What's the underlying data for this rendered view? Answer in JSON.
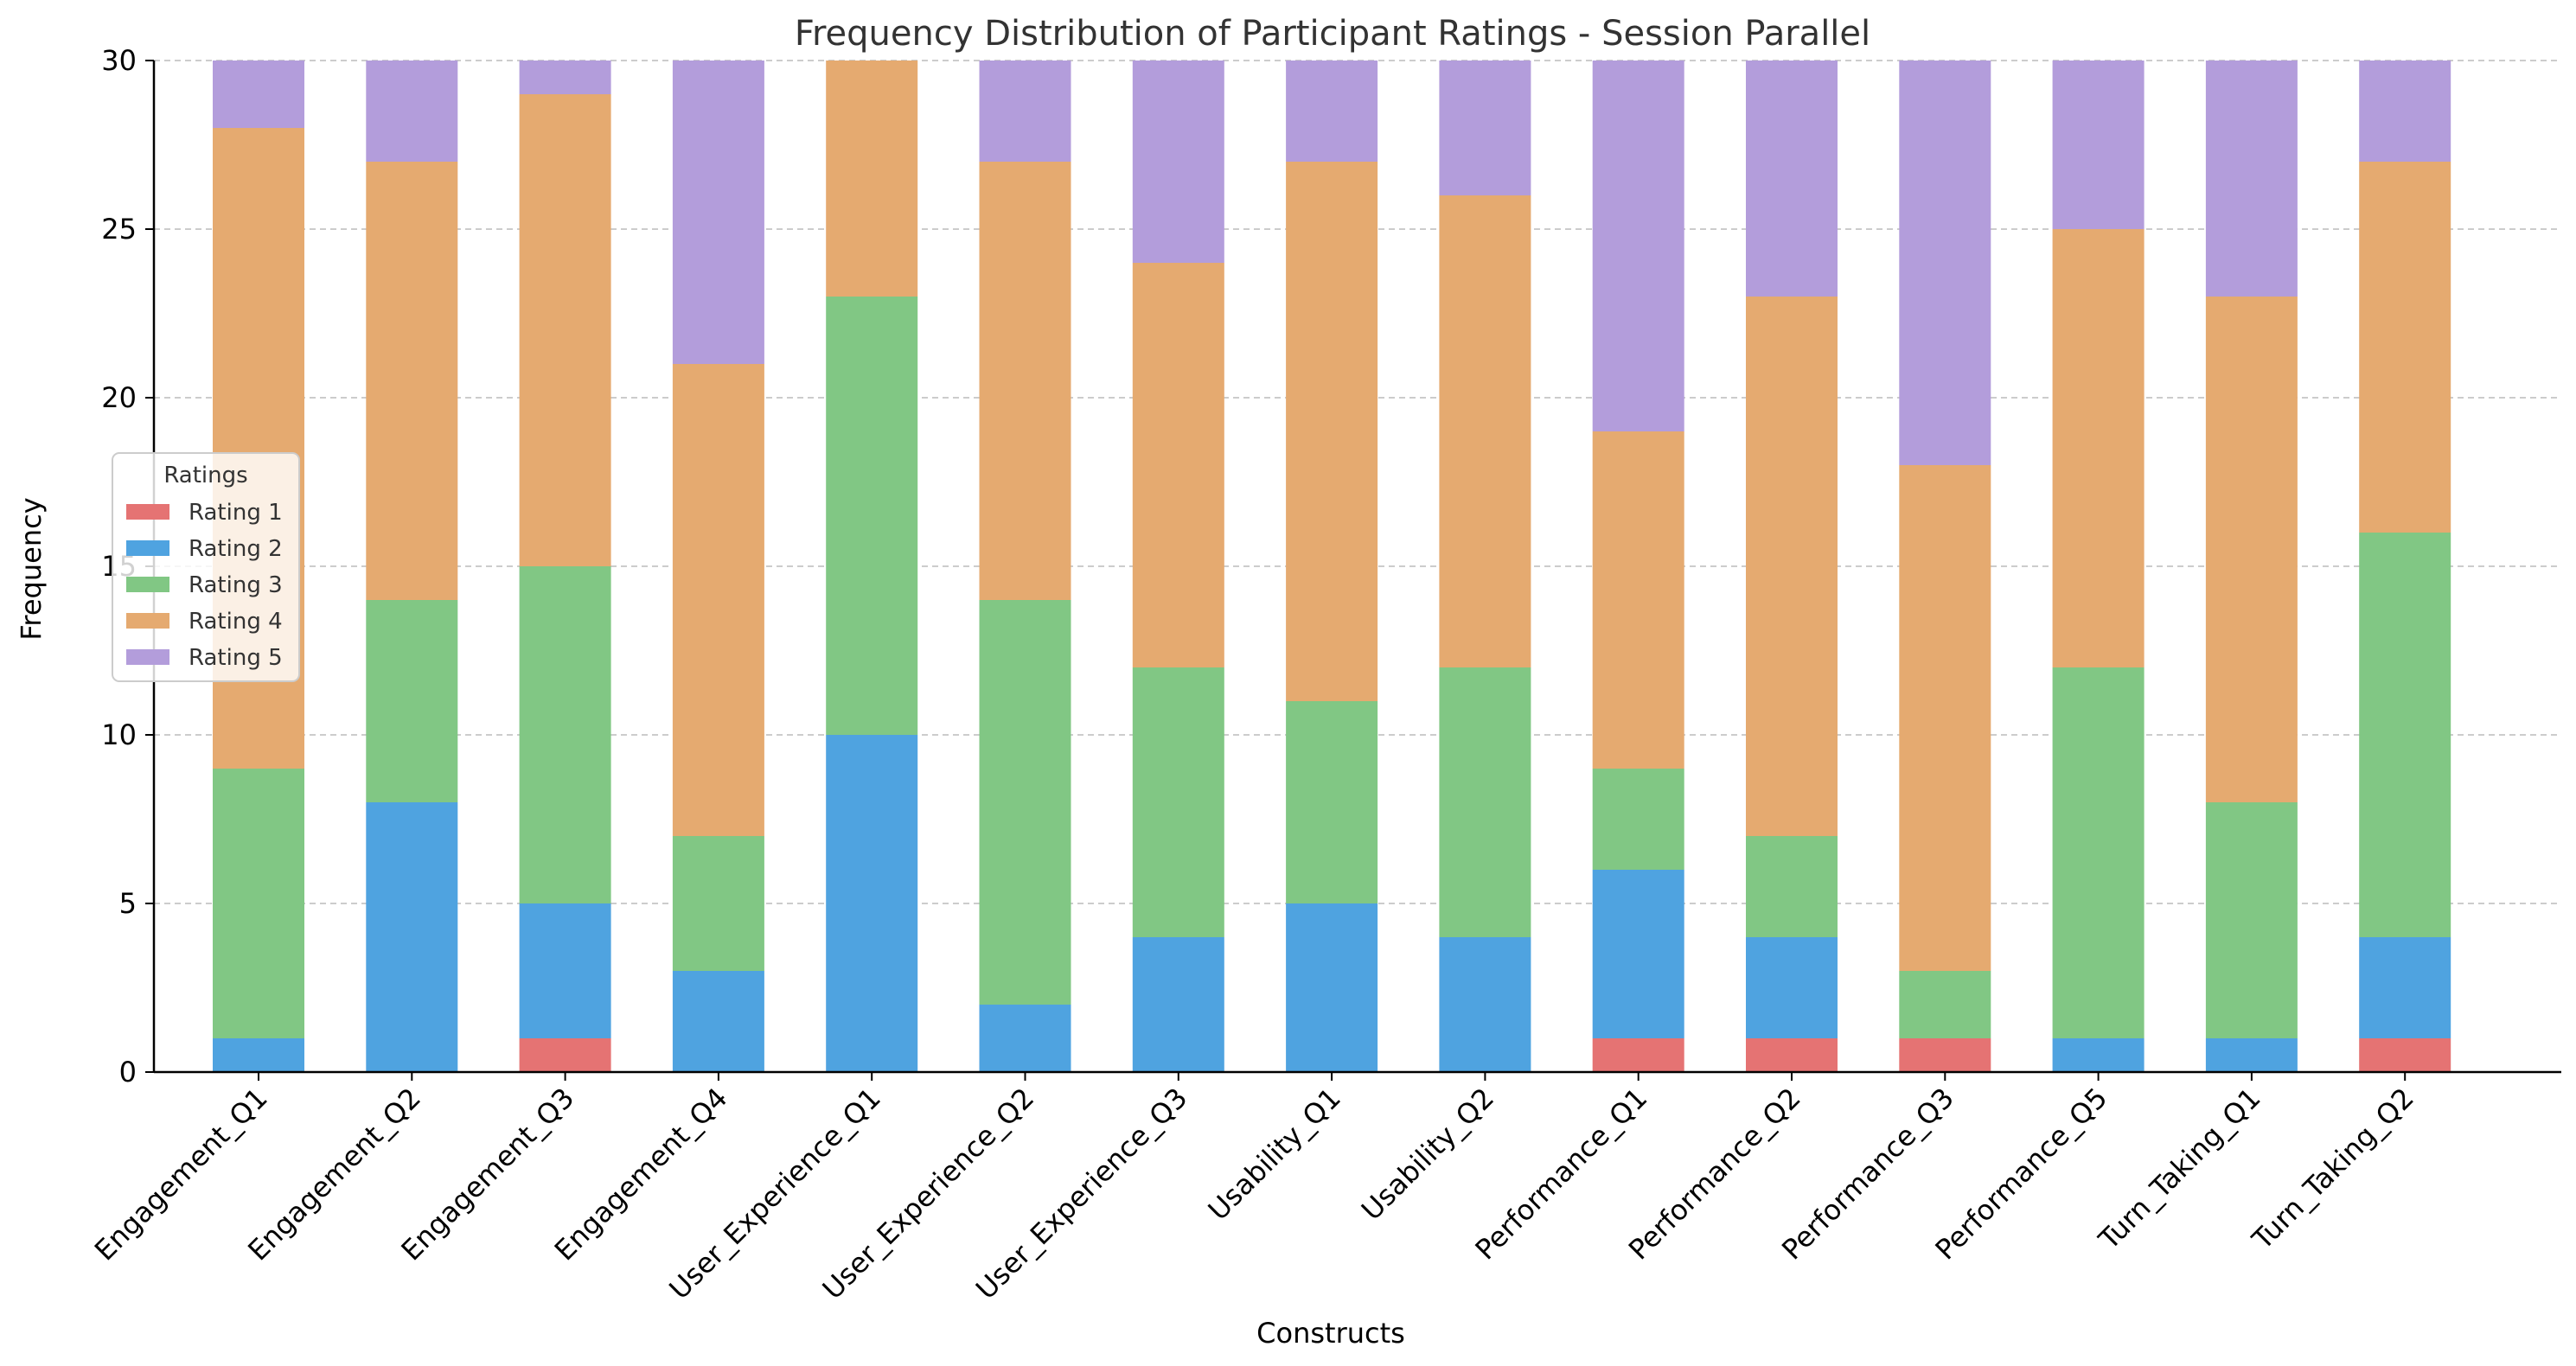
{
  "chart_data": {
    "type": "bar",
    "stacked": true,
    "title": "Frequency Distribution of Participant Ratings - Session Parallel",
    "xlabel": "Constructs",
    "ylabel": "Frequency",
    "ylim": [
      0,
      30
    ],
    "yticks": [
      0,
      5,
      10,
      15,
      20,
      25,
      30
    ],
    "grid": true,
    "categories": [
      "Engagement_Q1",
      "Engagement_Q2",
      "Engagement_Q3",
      "Engagement_Q4",
      "User_Experience_Q1",
      "User_Experience_Q2",
      "User_Experience_Q3",
      "Usability_Q1",
      "Usability_Q2",
      "Performance_Q1",
      "Performance_Q2",
      "Performance_Q3",
      "Performance_Q5",
      "Turn_Taking_Q1",
      "Turn_Taking_Q2"
    ],
    "series": [
      {
        "name": "Rating 1",
        "color": "#e57373",
        "values": [
          0,
          0,
          1,
          0,
          0,
          0,
          0,
          0,
          0,
          1,
          1,
          1,
          0,
          0,
          1
        ]
      },
      {
        "name": "Rating 2",
        "color": "#4fa3e0",
        "values": [
          1,
          8,
          4,
          3,
          10,
          2,
          4,
          5,
          4,
          5,
          3,
          0,
          1,
          1,
          3
        ]
      },
      {
        "name": "Rating 3",
        "color": "#81c784",
        "values": [
          8,
          6,
          10,
          4,
          13,
          12,
          8,
          6,
          8,
          3,
          3,
          2,
          11,
          7,
          12
        ]
      },
      {
        "name": "Rating 4",
        "color": "#e5aa70",
        "values": [
          19,
          13,
          14,
          14,
          7,
          13,
          12,
          16,
          14,
          10,
          16,
          15,
          13,
          15,
          11
        ]
      },
      {
        "name": "Rating 5",
        "color": "#b39ddb",
        "values": [
          2,
          3,
          1,
          9,
          0,
          3,
          6,
          3,
          4,
          11,
          7,
          12,
          5,
          7,
          3
        ]
      }
    ],
    "legend": {
      "title": "Ratings",
      "position": "center-left"
    }
  }
}
